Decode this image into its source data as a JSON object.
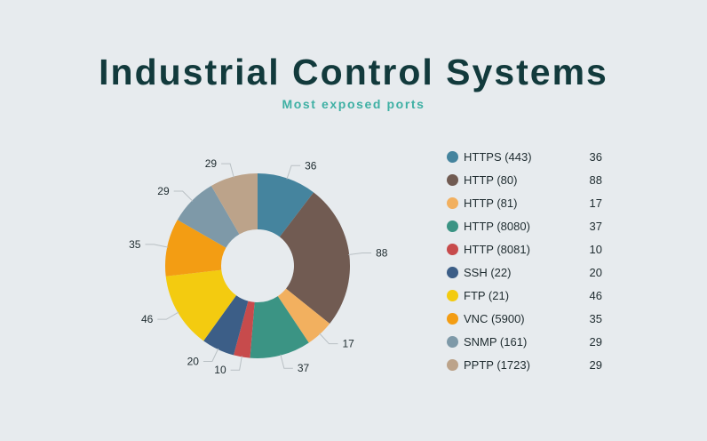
{
  "chart_data": {
    "type": "pie",
    "title": "Industrial Control Systems",
    "subtitle": "Most exposed ports",
    "legend": "right",
    "slices": [
      {
        "name": "HTTPS (443)",
        "value": 36,
        "color": "#45849e"
      },
      {
        "name": "HTTP (80)",
        "value": 88,
        "color": "#715b52"
      },
      {
        "name": "HTTP (81)",
        "value": 17,
        "color": "#f2b05f"
      },
      {
        "name": "HTTP (8080)",
        "value": 37,
        "color": "#3b9484"
      },
      {
        "name": "HTTP (8081)",
        "value": 10,
        "color": "#c74b4c"
      },
      {
        "name": "SSH (22)",
        "value": 20,
        "color": "#3c5e87"
      },
      {
        "name": "FTP (21)",
        "value": 46,
        "color": "#f3cb10"
      },
      {
        "name": "VNC (5900)",
        "value": 35,
        "color": "#f39d13"
      },
      {
        "name": "SNMP (161)",
        "value": 29,
        "color": "#7e99a8"
      },
      {
        "name": "PPTP (1723)",
        "value": 29,
        "color": "#bca38a"
      }
    ]
  }
}
